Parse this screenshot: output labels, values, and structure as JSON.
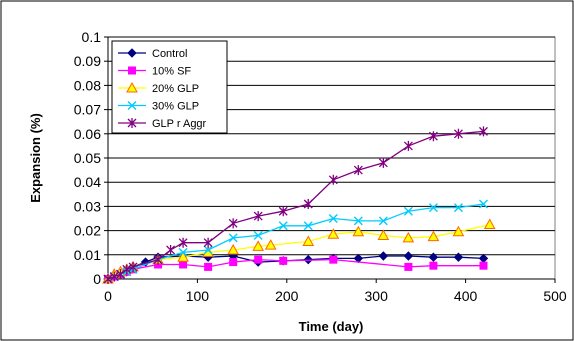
{
  "chart_data": {
    "type": "line",
    "title": "",
    "xlabel": "Time (day)",
    "ylabel": "Expansion (%)",
    "xlim": [
      0,
      500
    ],
    "ylim": [
      0,
      0.1
    ],
    "xticks": [
      0,
      100,
      200,
      300,
      400,
      500
    ],
    "yticks": [
      0,
      0.01,
      0.02,
      0.03,
      0.04,
      0.05,
      0.06,
      0.07,
      0.08,
      0.09,
      0.1
    ],
    "grid": "horizontal",
    "legend_position": "top-left",
    "series": [
      {
        "name": "Control",
        "color": "#000080",
        "marker": "diamond",
        "x": [
          0,
          7,
          14,
          21,
          28,
          42,
          56,
          84,
          112,
          140,
          168,
          196,
          224,
          252,
          280,
          308,
          336,
          364,
          392,
          420
        ],
        "y": [
          0.0,
          0.001,
          0.002,
          0.003,
          0.005,
          0.007,
          0.009,
          0.0095,
          0.009,
          0.0095,
          0.007,
          0.0075,
          0.008,
          0.0085,
          0.0085,
          0.0095,
          0.0095,
          0.009,
          0.009,
          0.0085
        ]
      },
      {
        "name": "10% SF",
        "color": "#ff00ff",
        "marker": "square",
        "x": [
          0,
          7,
          14,
          21,
          28,
          56,
          84,
          112,
          140,
          168,
          196,
          252,
          336,
          364,
          420
        ],
        "y": [
          0.0,
          0.001,
          0.002,
          0.003,
          0.004,
          0.006,
          0.006,
          0.005,
          0.007,
          0.008,
          0.0075,
          0.008,
          0.005,
          0.0055,
          0.0055
        ]
      },
      {
        "name": "20% GLP",
        "color": "#ffff00",
        "edge": "#ff6600",
        "marker": "triangle",
        "x": [
          0,
          7,
          14,
          21,
          28,
          56,
          84,
          112,
          140,
          168,
          182,
          224,
          252,
          280,
          308,
          336,
          364,
          392,
          427
        ],
        "y": [
          0.0,
          0.002,
          0.003,
          0.004,
          0.005,
          0.008,
          0.009,
          0.011,
          0.012,
          0.0135,
          0.014,
          0.0155,
          0.0185,
          0.0195,
          0.018,
          0.017,
          0.0175,
          0.0195,
          0.0225
        ]
      },
      {
        "name": "30% GLP",
        "color": "#00ccff",
        "marker": "x",
        "x": [
          0,
          7,
          14,
          21,
          28,
          56,
          84,
          112,
          140,
          168,
          196,
          224,
          252,
          280,
          308,
          336,
          364,
          392,
          420
        ],
        "y": [
          0.0,
          0.001,
          0.002,
          0.003,
          0.004,
          0.008,
          0.011,
          0.012,
          0.017,
          0.018,
          0.022,
          0.022,
          0.025,
          0.024,
          0.024,
          0.028,
          0.0295,
          0.0295,
          0.031
        ]
      },
      {
        "name": "GLP r Aggr",
        "color": "#800080",
        "marker": "star",
        "x": [
          0,
          7,
          14,
          21,
          28,
          56,
          70,
          84,
          112,
          140,
          168,
          196,
          224,
          252,
          280,
          308,
          336,
          364,
          392,
          420
        ],
        "y": [
          0.0,
          0.001,
          0.002,
          0.004,
          0.005,
          0.008,
          0.012,
          0.015,
          0.015,
          0.023,
          0.026,
          0.028,
          0.031,
          0.041,
          0.045,
          0.048,
          0.055,
          0.059,
          0.06,
          0.061
        ]
      }
    ]
  }
}
